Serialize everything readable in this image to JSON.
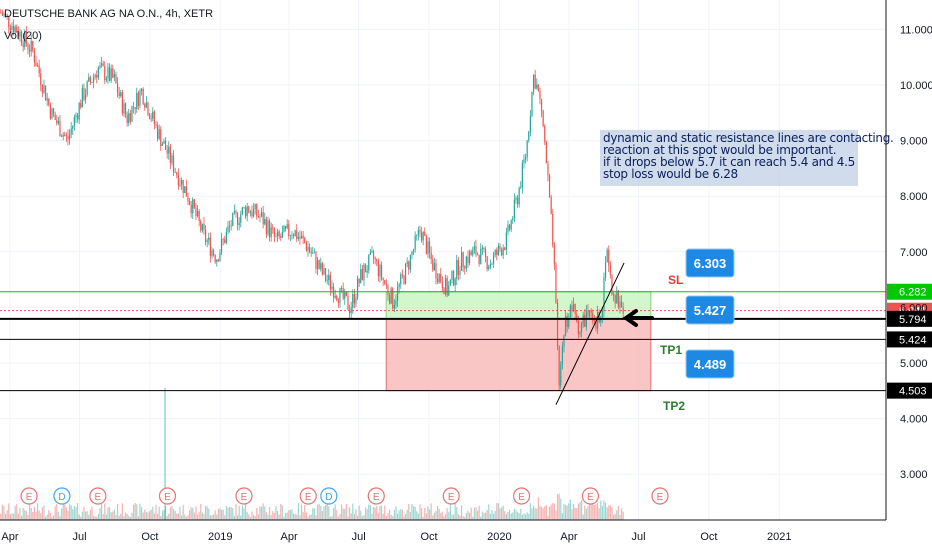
{
  "header": {
    "symbol_line": "DEUTSCHE BANK AG NA O.N., 4h, XETR",
    "volume_label": "Vol (20)"
  },
  "annotation": {
    "lines": [
      "dynamic and static resistance lines are contacting.",
      "reaction at this spot would be important.",
      "if it drops below 5.7 it can reach 5.4 and 4.5",
      "stop loss would be 6.28"
    ]
  },
  "chart_data": {
    "type": "line",
    "title": "",
    "xlabel": "",
    "ylabel": "",
    "x_ticks": [
      "Apr",
      "Jul",
      "Oct",
      "2019",
      "Apr",
      "Jul",
      "Oct",
      "2020",
      "Apr",
      "Jul",
      "Oct",
      "2021"
    ],
    "y_ticks": [
      "11.000",
      "10.000",
      "9.000",
      "8.000",
      "7.000",
      "6.000",
      "5.000",
      "4.000",
      "3.000"
    ],
    "ylim": [
      2.5,
      11.5
    ],
    "price_series": [
      [
        "2018-03-20",
        11.3
      ],
      [
        "2018-04-10",
        11.0
      ],
      [
        "2018-05-01",
        10.6
      ],
      [
        "2018-05-25",
        9.5
      ],
      [
        "2018-06-15",
        9.0
      ],
      [
        "2018-07-05",
        9.8
      ],
      [
        "2018-07-25",
        10.3
      ],
      [
        "2018-08-15",
        10.1
      ],
      [
        "2018-09-01",
        9.4
      ],
      [
        "2018-09-20",
        9.9
      ],
      [
        "2018-10-10",
        9.2
      ],
      [
        "2018-10-30",
        8.6
      ],
      [
        "2018-11-20",
        8.0
      ],
      [
        "2018-12-10",
        7.3
      ],
      [
        "2018-12-27",
        6.9
      ],
      [
        "2019-01-15",
        7.5
      ],
      [
        "2019-02-05",
        7.8
      ],
      [
        "2019-02-25",
        7.6
      ],
      [
        "2019-03-15",
        7.2
      ],
      [
        "2019-04-05",
        7.4
      ],
      [
        "2019-04-25",
        7.1
      ],
      [
        "2019-05-15",
        6.6
      ],
      [
        "2019-06-01",
        6.3
      ],
      [
        "2019-06-20",
        6.0
      ],
      [
        "2019-07-05",
        6.6
      ],
      [
        "2019-07-20",
        6.9
      ],
      [
        "2019-08-05",
        6.4
      ],
      [
        "2019-08-15",
        6.1
      ],
      [
        "2019-08-30",
        6.6
      ],
      [
        "2019-09-20",
        7.4
      ],
      [
        "2019-10-05",
        6.8
      ],
      [
        "2019-10-25",
        6.3
      ],
      [
        "2019-11-10",
        6.8
      ],
      [
        "2019-12-01",
        7.0
      ],
      [
        "2019-12-20",
        6.8
      ],
      [
        "2020-01-10",
        7.2
      ],
      [
        "2020-01-25",
        8.0
      ],
      [
        "2020-02-05",
        8.8
      ],
      [
        "2020-02-15",
        10.2
      ],
      [
        "2020-02-25",
        9.6
      ],
      [
        "2020-03-05",
        8.2
      ],
      [
        "2020-03-12",
        6.9
      ],
      [
        "2020-03-19",
        4.6
      ],
      [
        "2020-03-26",
        5.7
      ],
      [
        "2020-04-05",
        6.0
      ],
      [
        "2020-04-15",
        5.6
      ],
      [
        "2020-04-25",
        5.9
      ],
      [
        "2020-05-05",
        5.6
      ],
      [
        "2020-05-15",
        6.1
      ],
      [
        "2020-05-20",
        7.2
      ],
      [
        "2020-05-28",
        6.3
      ],
      [
        "2020-06-05",
        6.1
      ],
      [
        "2020-06-12",
        5.94
      ]
    ],
    "horizontal_levels": [
      {
        "value": 6.282,
        "label": "6.282",
        "color": "#00c800"
      },
      {
        "value": 5.941,
        "label": "5.941",
        "color": "#ef5350"
      },
      {
        "value": 5.794,
        "label": "5.794",
        "color": "#000000"
      },
      {
        "value": 5.424,
        "label": "5.424",
        "color": "#000000"
      },
      {
        "value": 4.503,
        "label": "4.503",
        "color": "#000000"
      }
    ],
    "position_tool": {
      "stop_loss": {
        "label": "SL",
        "value": "6.303"
      },
      "entry": {
        "value": "5.427"
      },
      "tp1": {
        "label": "TP1"
      },
      "target": {
        "label": "TP2",
        "value": "4.489"
      },
      "profit_color": "#f8bbbb",
      "loss_color": "#c8f5c0"
    },
    "event_markers": [
      {
        "date": "2018-04-26",
        "label": "E"
      },
      {
        "date": "2018-06-08",
        "label": "D"
      },
      {
        "date": "2018-07-25",
        "label": "E"
      },
      {
        "date": "2018-10-24",
        "label": "E"
      },
      {
        "date": "2019-02-01",
        "label": "E"
      },
      {
        "date": "2019-04-26",
        "label": "E"
      },
      {
        "date": "2019-05-23",
        "label": "D"
      },
      {
        "date": "2019-07-24",
        "label": "E"
      },
      {
        "date": "2019-10-30",
        "label": "E"
      },
      {
        "date": "2020-01-30",
        "label": "E"
      },
      {
        "date": "2020-04-29",
        "label": "E"
      },
      {
        "date": "2020-07-29",
        "label": "E"
      }
    ],
    "colors": {
      "up": "#26a69a",
      "down": "#ef5350",
      "grid": "#f0f3fa",
      "marker": "#e57373"
    }
  }
}
